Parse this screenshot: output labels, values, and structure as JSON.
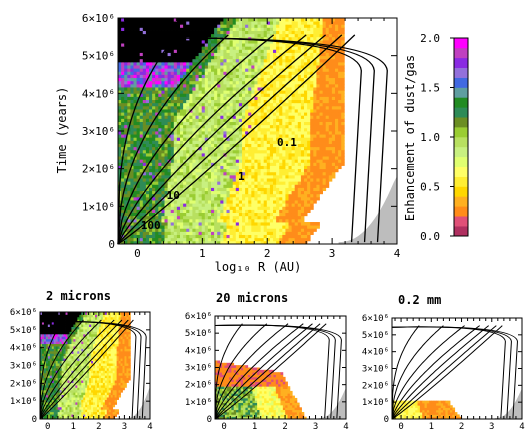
{
  "chart_data": [
    {
      "type": "heatmap",
      "id": "main",
      "title": "",
      "xlabel": "log₁₀ R (AU)",
      "ylabel": "Time (years)",
      "xlim": [
        -0.3,
        4
      ],
      "ylim": [
        0,
        6000000
      ],
      "x_ticks": [
        "0",
        "1",
        "2",
        "3",
        "4"
      ],
      "y_ticks": [
        "0",
        "1×10⁶",
        "2×10⁶",
        "3×10⁶",
        "4×10⁶",
        "5×10⁶",
        "6×10⁶"
      ],
      "colorbar": {
        "label": "Enhancement of dust/gas",
        "range": [
          0,
          2
        ],
        "ticks": [
          "0.0",
          "0.5",
          "1.0",
          "1.5",
          "2.0"
        ],
        "colors": [
          "#b03060",
          "#e05078",
          "#ff8c1a",
          "#ffb020",
          "#ffd700",
          "#ffee33",
          "#ffff66",
          "#e0ff70",
          "#c8f080",
          "#b8e060",
          "#9acd32",
          "#6b8e23",
          "#2e8b57",
          "#228b22",
          "#5f9ea0",
          "#4169e1",
          "#9370db",
          "#8a2be2",
          "#c040c0",
          "#ff00ff"
        ]
      },
      "contour_labels": [
        "0.1",
        "1",
        "10",
        "100"
      ]
    },
    {
      "type": "heatmap",
      "id": "small-2-microns",
      "title": "2 microns",
      "xlim": [
        -0.3,
        4
      ],
      "ylim": [
        0,
        6000000
      ],
      "x_ticks": [
        "0",
        "1",
        "2",
        "3",
        "4"
      ],
      "y_ticks": [
        "0",
        "1×10⁶",
        "2×10⁶",
        "3×10⁶",
        "4×10⁶",
        "5×10⁶",
        "6×10⁶"
      ]
    },
    {
      "type": "heatmap",
      "id": "small-20-microns",
      "title": "20 microns",
      "xlim": [
        -0.3,
        4
      ],
      "ylim": [
        0,
        6000000
      ],
      "x_ticks": [
        "0",
        "1",
        "2",
        "3",
        "4"
      ],
      "y_ticks": [
        "0",
        "1×10⁶",
        "2×10⁶",
        "3×10⁶",
        "4×10⁶",
        "5×10⁶",
        "6×10⁶"
      ]
    },
    {
      "type": "heatmap",
      "id": "small-0.2-mm",
      "title": "0.2 mm",
      "xlim": [
        -0.3,
        4
      ],
      "ylim": [
        0,
        6000000
      ],
      "x_ticks": [
        "0",
        "1",
        "2",
        "3",
        "4"
      ],
      "y_ticks": [
        "0",
        "1×10⁶",
        "2×10⁶",
        "3×10⁶",
        "4×10⁶",
        "5×10⁶",
        "6×10⁶"
      ]
    }
  ]
}
